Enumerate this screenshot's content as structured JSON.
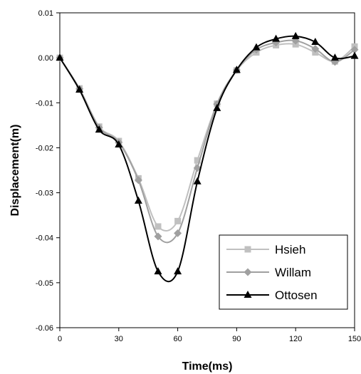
{
  "chart_data": {
    "type": "line",
    "title": "",
    "xlabel": "Time(ms)",
    "ylabel": "Displacement(m)",
    "xlim": [
      0,
      150
    ],
    "ylim": [
      -0.06,
      0.01
    ],
    "x_ticks": [
      0,
      30,
      60,
      90,
      120,
      150
    ],
    "y_ticks": [
      0.01,
      0.0,
      -0.01,
      -0.02,
      -0.03,
      -0.04,
      -0.05,
      -0.06
    ],
    "x_tick_labels": [
      "0",
      "30",
      "60",
      "90",
      "120",
      "150"
    ],
    "y_tick_labels": [
      "0.01",
      "0.00",
      "-0.01",
      "-0.02",
      "-0.03",
      "-0.04",
      "-0.05",
      "-0.06"
    ],
    "grid": false,
    "legend_position": "bottom-right",
    "x": [
      0,
      10,
      20,
      30,
      40,
      50,
      60,
      70,
      80,
      90,
      100,
      110,
      120,
      130,
      140,
      150
    ],
    "series": [
      {
        "name": "Hsieh",
        "color": "#c0c0c0",
        "marker": "square",
        "values": [
          0.0,
          -0.0068,
          -0.0153,
          -0.0185,
          -0.0268,
          -0.0375,
          -0.0363,
          -0.0228,
          -0.0102,
          -0.0028,
          0.0012,
          0.0028,
          0.003,
          0.0012,
          -0.0008,
          0.0025
        ]
      },
      {
        "name": "Willam",
        "color": "#a0a0a0",
        "marker": "diamond",
        "values": [
          0.0,
          -0.0069,
          -0.0155,
          -0.0188,
          -0.0272,
          -0.0397,
          -0.039,
          -0.0245,
          -0.0103,
          -0.0027,
          0.0018,
          0.0034,
          0.0038,
          0.002,
          -0.0009,
          0.0018
        ]
      },
      {
        "name": "Ottosen",
        "color": "#000000",
        "marker": "triangle",
        "values": [
          0.0,
          -0.0071,
          -0.016,
          -0.0193,
          -0.0318,
          -0.0475,
          -0.0475,
          -0.0275,
          -0.0112,
          -0.0027,
          0.0023,
          0.0042,
          0.0048,
          0.0035,
          0.0,
          0.0004
        ]
      }
    ]
  }
}
